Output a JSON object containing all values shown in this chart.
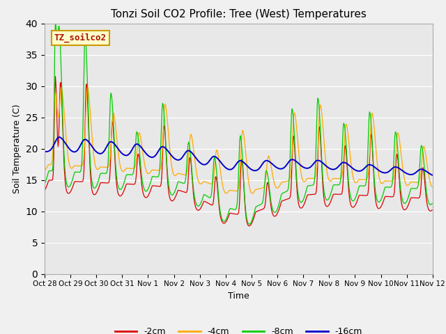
{
  "title": "Tonzi Soil CO2 Profile: Tree (West) Temperatures",
  "xlabel": "Time",
  "ylabel": "Soil Temperature (C)",
  "ylim": [
    0,
    40
  ],
  "yticks": [
    0,
    5,
    10,
    15,
    20,
    25,
    30,
    35,
    40
  ],
  "bg_color": "#e8e8e8",
  "fig_bg_color": "#f0f0f0",
  "legend_box_label": "TZ_soilco2",
  "legend_box_text_color": "#aa1100",
  "legend_box_face": "#ffffcc",
  "legend_box_edge": "#cc9900",
  "colors": {
    "-2cm": "#dd0000",
    "-4cm": "#ffaa00",
    "-8cm": "#00cc00",
    "-16cm": "#0000cc"
  },
  "xtick_labels": [
    "Oct 28",
    "Oct 29",
    "Oct 30",
    "Oct 31",
    "Nov 1",
    "Nov 2",
    "Nov 3",
    "Nov 4",
    "Nov 5",
    "Nov 6",
    "Nov 7",
    "Nov 8",
    "Nov 9",
    "Nov 10",
    "Nov 11",
    "Nov 12"
  ],
  "n_days": 15,
  "samples_per_day": 48
}
